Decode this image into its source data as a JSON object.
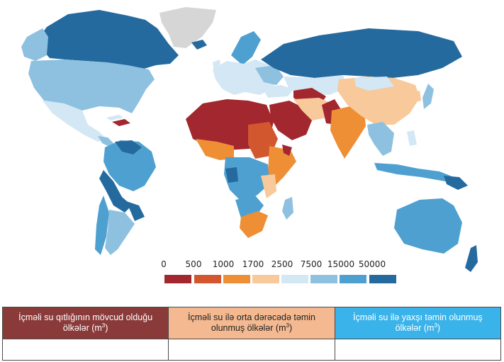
{
  "map": {
    "colors": {
      "scarcity_dark": "#a2272e",
      "scarcity": "#d2572f",
      "stress": "#ee8f35",
      "moderate": "#f7c99b",
      "light_blue": "#d3e7f4",
      "blue_1": "#8ec1e0",
      "blue_2": "#4ea0d0",
      "blue_3": "#256a9f",
      "no_data": "#d6d6d6",
      "ocean": "#ffffff"
    }
  },
  "legend": {
    "ticks": [
      "0",
      "500",
      "1000",
      "1700",
      "2500",
      "7500",
      "15000",
      "50000"
    ],
    "swatches": [
      "#a2272e",
      "#d2572f",
      "#ee8f35",
      "#f7c99b",
      "#d3e7f4",
      "#8ec1e0",
      "#4ea0d0",
      "#256a9f"
    ]
  },
  "table": {
    "headers": [
      {
        "text": "İçməli su qıtlığının mövcud olduğu ölkələr",
        "unit": "(m",
        "sup": "3",
        "close": ")"
      },
      {
        "text": "İçməli su ilə orta dərəcədə təmin olunmuş ölkələr",
        "unit": "(m",
        "sup": "3",
        "close": ")"
      },
      {
        "text": "İçməli su ilə yaxşı təmin olunmuş ölkələr",
        "unit": "(m",
        "sup": "3",
        "close": ")"
      }
    ]
  }
}
